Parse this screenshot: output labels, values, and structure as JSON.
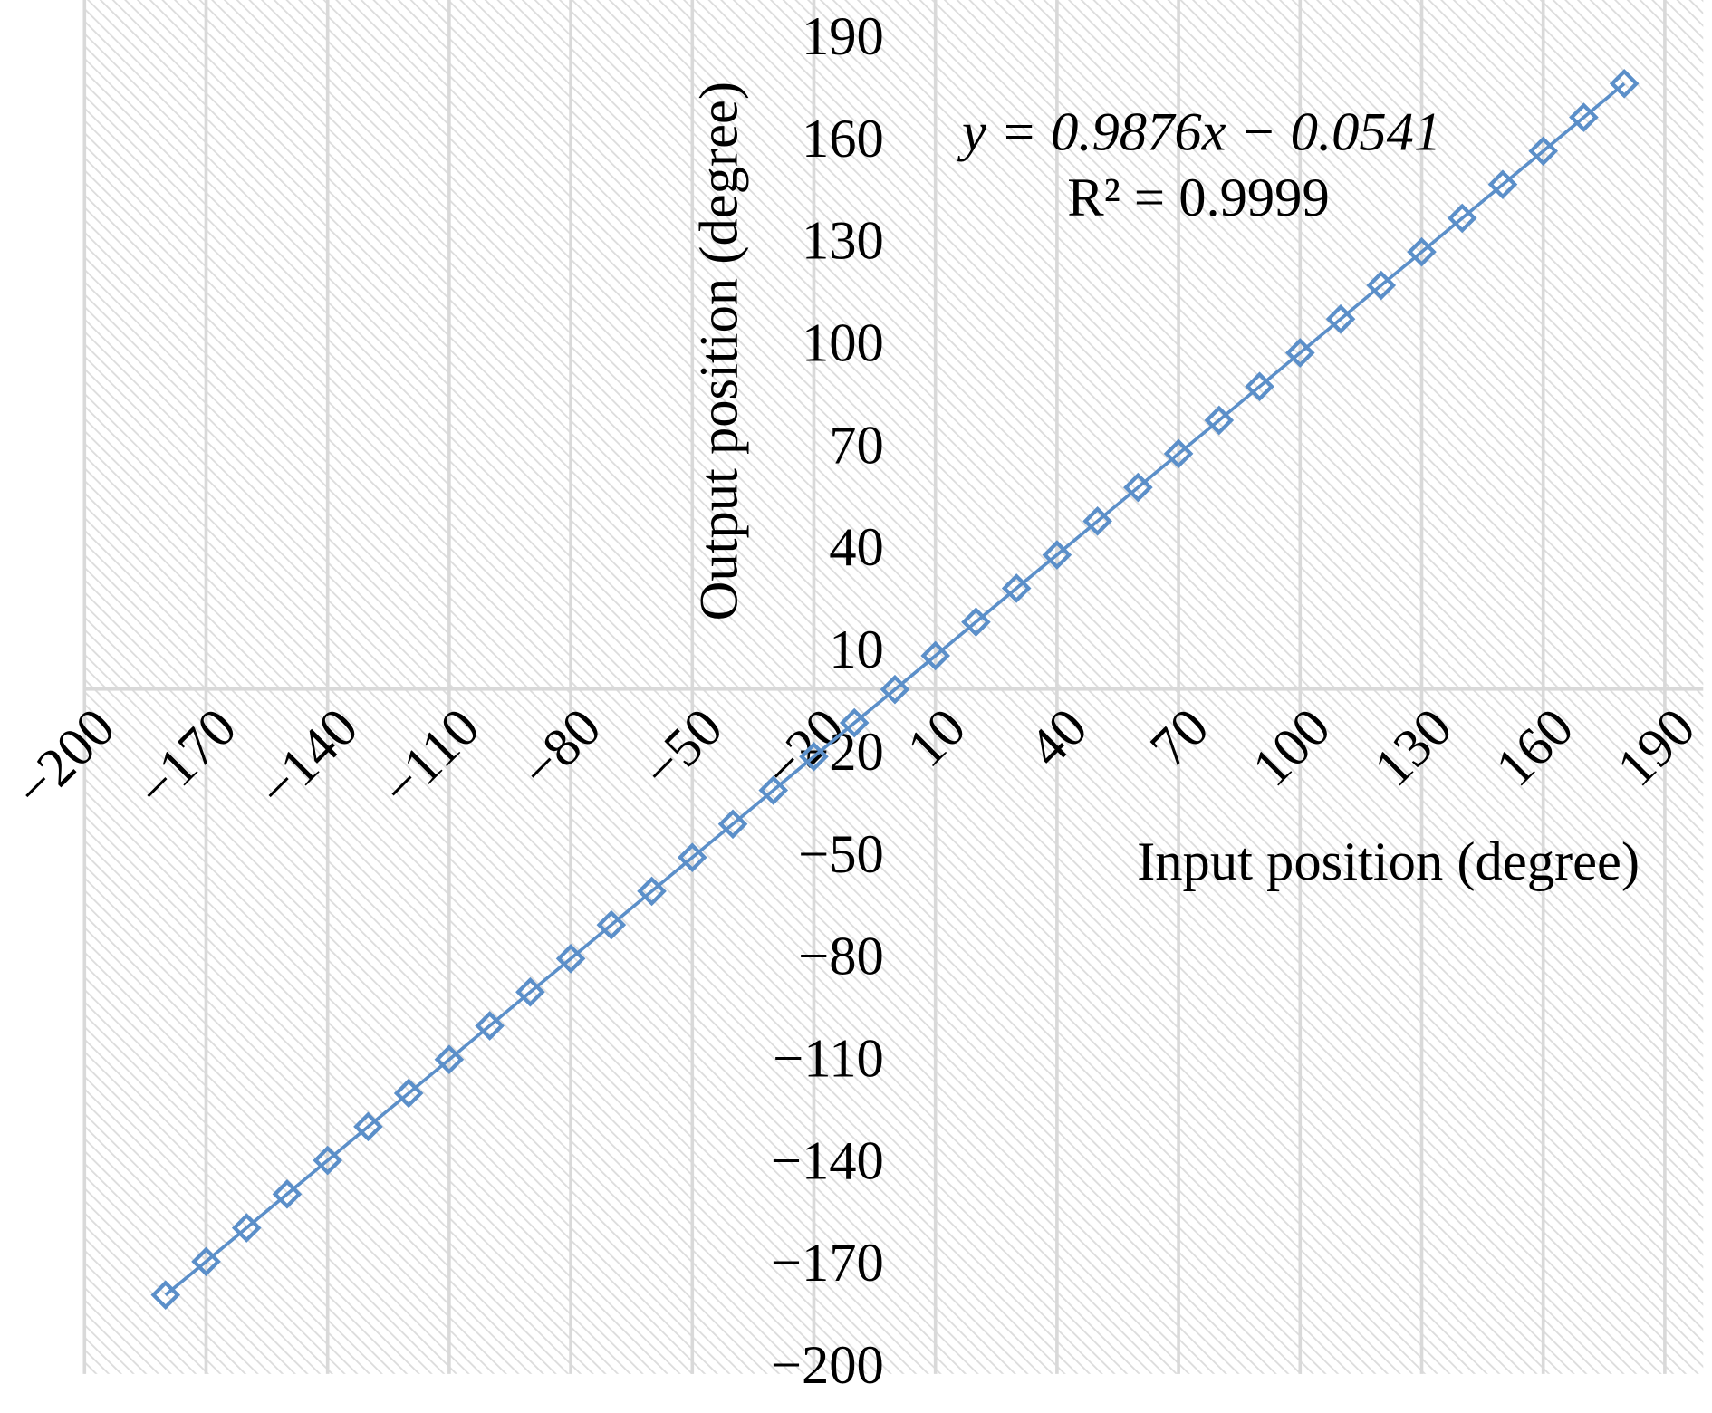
{
  "chart_data": {
    "type": "line",
    "xlabel": "Input position (degree)",
    "ylabel": "Output position (degree)",
    "annotations": [
      "y = 0.9876x − 0.0541",
      "R² = 0.9999"
    ],
    "x": [
      -180,
      -170,
      -160,
      -150,
      -140,
      -130,
      -120,
      -110,
      -100,
      -90,
      -80,
      -70,
      -60,
      -50,
      -40,
      -30,
      -20,
      -10,
      0,
      10,
      20,
      30,
      40,
      50,
      60,
      70,
      80,
      90,
      100,
      110,
      120,
      130,
      140,
      150,
      160,
      170,
      180
    ],
    "series": [
      {
        "color": "#5b8fc9",
        "values": [
          -177.8,
          -168.0,
          -158.1,
          -148.2,
          -138.3,
          -128.4,
          -118.6,
          -108.7,
          -98.8,
          -88.9,
          -79.1,
          -69.2,
          -59.3,
          -49.4,
          -39.6,
          -29.7,
          -19.8,
          -9.9,
          -0.1,
          9.8,
          19.7,
          29.6,
          39.4,
          49.3,
          59.2,
          69.1,
          78.9,
          88.8,
          98.7,
          108.6,
          118.5,
          128.3,
          138.2,
          148.1,
          157.9,
          167.8,
          177.7
        ]
      }
    ],
    "xlim": [
      -200,
      190
    ],
    "ylim": [
      -200,
      190
    ],
    "xticks": [
      {
        "value": -200,
        "label": "−200"
      },
      {
        "value": -170,
        "label": "−170"
      },
      {
        "value": -140,
        "label": "−140"
      },
      {
        "value": -110,
        "label": "−110"
      },
      {
        "value": -80,
        "label": "−80"
      },
      {
        "value": -50,
        "label": "−50"
      },
      {
        "value": -20,
        "label": "−20"
      },
      10,
      40,
      70,
      100,
      130,
      160,
      190
    ],
    "yticks": [
      {
        "value": -200,
        "label": "−200"
      },
      {
        "value": -170,
        "label": "−170"
      },
      {
        "value": -140,
        "label": "−140"
      },
      {
        "value": -110,
        "label": "−110"
      },
      {
        "value": -80,
        "label": "−80"
      },
      {
        "value": -50,
        "label": "−50"
      },
      {
        "value": -20,
        "label": "−20"
      },
      10,
      40,
      70,
      100,
      130,
      160,
      190
    ],
    "grid": "x"
  }
}
